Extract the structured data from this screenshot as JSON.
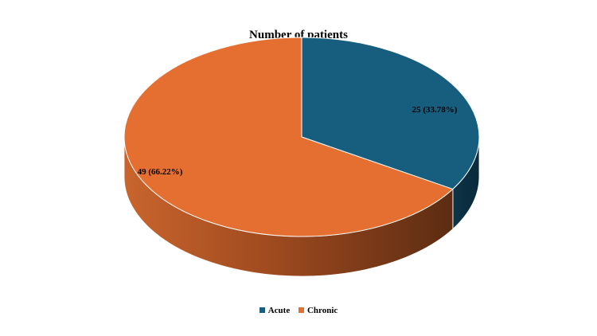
{
  "chart_data": {
    "type": "pie",
    "title": "Number of patients",
    "slices": [
      {
        "name": "Acute",
        "value": 25,
        "label": "25 (33.78%)",
        "color": "#175E7E"
      },
      {
        "name": "Chronic",
        "value": 49,
        "label": "49 (66.22%)",
        "color": "#E46F30"
      }
    ],
    "legend_position": "bottom",
    "style": "3d"
  }
}
